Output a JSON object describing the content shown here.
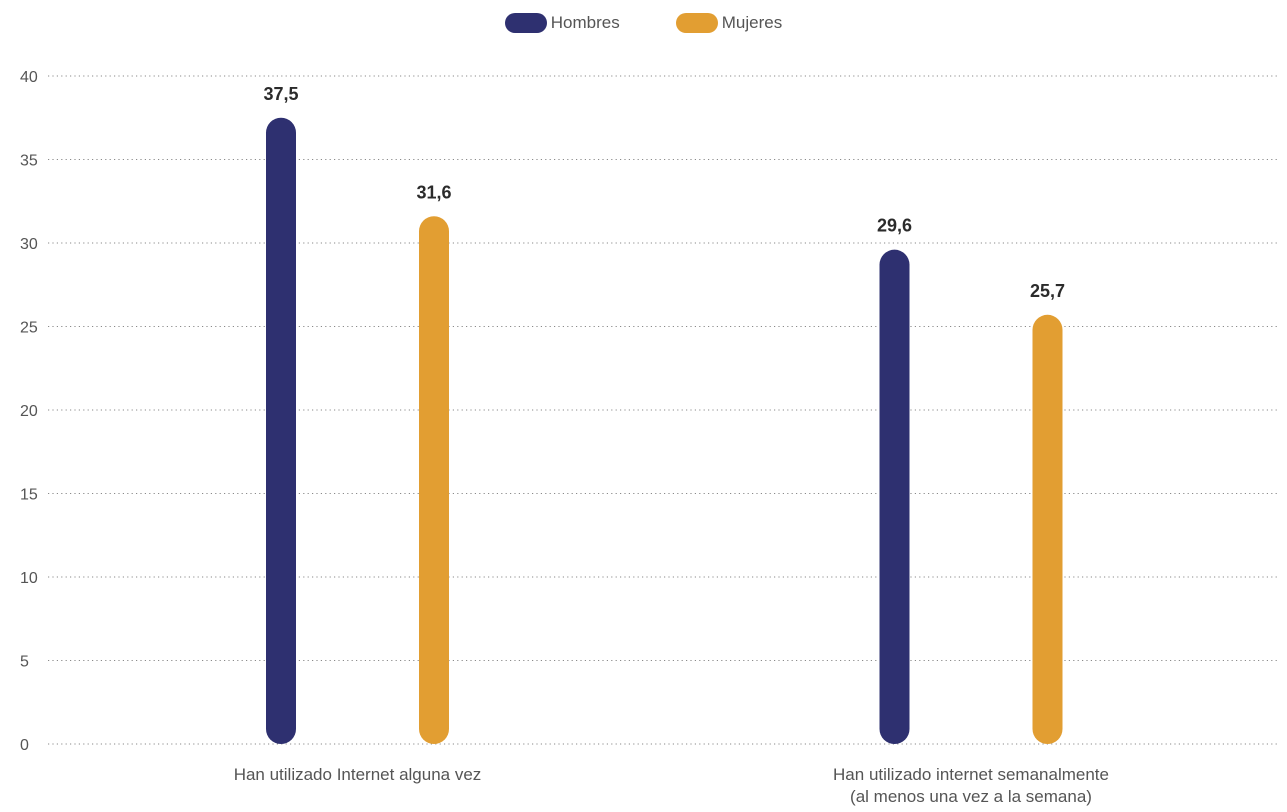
{
  "chart_data": {
    "type": "bar",
    "categories": [
      [
        "Han utilizado Internet alguna vez"
      ],
      [
        "Han utilizado internet semanalmente",
        "(al menos una vez a la semana)"
      ]
    ],
    "series": [
      {
        "name": "Hombres",
        "color": "#2e3070",
        "values": [
          37.5,
          29.6
        ],
        "labels": [
          "37,5",
          "29,6"
        ]
      },
      {
        "name": "Mujeres",
        "color": "#e29e32",
        "values": [
          31.6,
          25.7
        ],
        "labels": [
          "31,6",
          "25,7"
        ]
      }
    ],
    "ylim": [
      0,
      40
    ],
    "yticks": [
      0,
      5,
      10,
      15,
      20,
      25,
      30,
      35,
      40
    ],
    "grid": true,
    "grid_style": "dotted",
    "legend_position": "top-center"
  }
}
